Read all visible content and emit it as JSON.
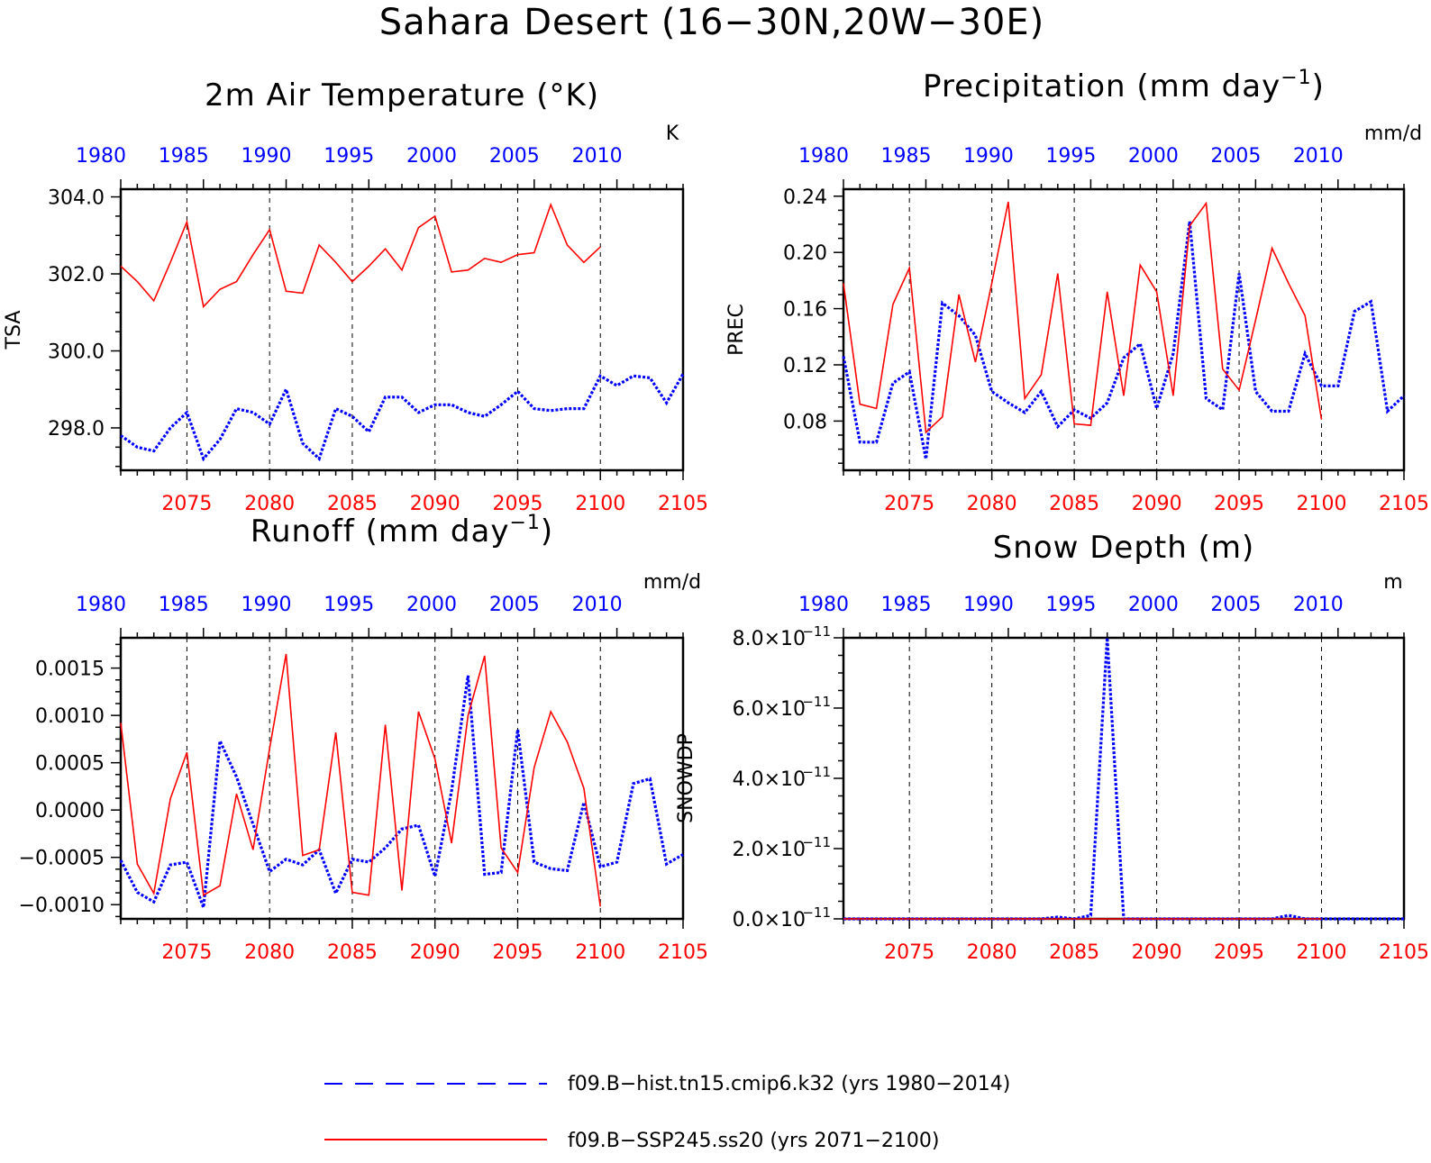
{
  "figure": {
    "title": "Sahara Desert (16−30N,20W−30E)"
  },
  "legend": {
    "placement": "bottom-center",
    "entries": [
      {
        "label": "f09.B−hist.tn15.cmip6.k32 (yrs 1980−2014)",
        "color": "#0000ff",
        "style": "dashed"
      },
      {
        "label": "f09.B−SSP245.ss20 (yrs 2071−2100)",
        "color": "#ff0000",
        "style": "solid"
      }
    ]
  },
  "colors": {
    "hist": "#0000ff",
    "ssp": "#ff0000",
    "grid": "#000000"
  },
  "chart_data": [
    {
      "id": "tsa",
      "type": "line",
      "title": "2m Air Temperature (°K)",
      "ylabel": "TSA",
      "units": "K",
      "ylim": [
        296.9,
        304.2
      ],
      "yticks": [
        298,
        300,
        302,
        304
      ],
      "ytick_labels": [
        "298.0",
        "300.0",
        "302.0",
        "304.0"
      ],
      "bottom_axis": {
        "lim": [
          2071,
          2105
        ],
        "ticks": [
          2075,
          2080,
          2085,
          2090,
          2095,
          2100,
          2105
        ],
        "color": "#ff0000"
      },
      "top_axis": {
        "lim": [
          1980,
          2014
        ],
        "ticks": [
          1980,
          1985,
          1990,
          1995,
          2000,
          2005,
          2010
        ],
        "color": "#0000ff"
      },
      "grid": "vertical dashed at bottom major ticks",
      "series": [
        {
          "key": "hist",
          "axis": "top",
          "style": "dotted",
          "x": [
            1980,
            1981,
            1982,
            1983,
            1984,
            1985,
            1986,
            1987,
            1988,
            1989,
            1990,
            1991,
            1992,
            1993,
            1994,
            1995,
            1996,
            1997,
            1998,
            1999,
            2000,
            2001,
            2002,
            2003,
            2004,
            2005,
            2006,
            2007,
            2008,
            2009,
            2010,
            2011,
            2012,
            2013,
            2014
          ],
          "values": [
            297.8,
            297.5,
            297.4,
            298.0,
            298.4,
            297.2,
            297.7,
            298.5,
            298.4,
            298.1,
            299.0,
            297.6,
            297.2,
            298.5,
            298.3,
            297.9,
            298.8,
            298.8,
            298.4,
            298.6,
            298.6,
            298.4,
            298.3,
            298.6,
            298.95,
            298.5,
            298.45,
            298.5,
            298.5,
            299.35,
            299.1,
            299.35,
            299.3,
            298.65,
            299.4
          ]
        },
        {
          "key": "ssp",
          "axis": "bottom",
          "style": "solid",
          "x": [
            2071,
            2072,
            2073,
            2074,
            2075,
            2076,
            2077,
            2078,
            2079,
            2080,
            2081,
            2082,
            2083,
            2084,
            2085,
            2086,
            2087,
            2088,
            2089,
            2090,
            2091,
            2092,
            2093,
            2094,
            2095,
            2096,
            2097,
            2098,
            2099,
            2100
          ],
          "values": [
            302.2,
            301.8,
            301.3,
            302.3,
            303.35,
            301.15,
            301.6,
            301.8,
            302.5,
            303.15,
            301.55,
            301.5,
            302.75,
            302.3,
            301.8,
            302.2,
            302.65,
            302.1,
            303.2,
            303.5,
            302.05,
            302.1,
            302.4,
            302.3,
            302.5,
            302.55,
            303.8,
            302.75,
            302.3,
            302.7
          ]
        }
      ]
    },
    {
      "id": "prec",
      "type": "line",
      "title": "Precipitation (mm day",
      "title_sup": "−1",
      "title_end": ")",
      "ylabel": "PREC",
      "units": "mm/d",
      "ylim": [
        0.045,
        0.245
      ],
      "yticks": [
        0.08,
        0.12,
        0.16,
        0.2,
        0.24
      ],
      "ytick_labels": [
        "0.08",
        "0.12",
        "0.16",
        "0.20",
        "0.24"
      ],
      "bottom_axis": {
        "lim": [
          2071,
          2105
        ],
        "ticks": [
          2075,
          2080,
          2085,
          2090,
          2095,
          2100,
          2105
        ],
        "color": "#ff0000"
      },
      "top_axis": {
        "lim": [
          1980,
          2014
        ],
        "ticks": [
          1980,
          1985,
          1990,
          1995,
          2000,
          2005,
          2010
        ],
        "color": "#0000ff"
      },
      "grid": "vertical dashed at bottom major ticks",
      "series": [
        {
          "key": "hist",
          "axis": "top",
          "style": "dotted",
          "x": [
            1980,
            1981,
            1982,
            1983,
            1984,
            1985,
            1986,
            1987,
            1988,
            1989,
            1990,
            1991,
            1992,
            1993,
            1994,
            1995,
            1996,
            1997,
            1998,
            1999,
            2000,
            2001,
            2002,
            2003,
            2004,
            2005,
            2006,
            2007,
            2008,
            2009,
            2010,
            2011,
            2012,
            2013,
            2014
          ],
          "values": [
            0.126,
            0.065,
            0.065,
            0.107,
            0.115,
            0.053,
            0.164,
            0.155,
            0.141,
            0.101,
            0.093,
            0.086,
            0.101,
            0.076,
            0.088,
            0.082,
            0.093,
            0.125,
            0.135,
            0.089,
            0.128,
            0.222,
            0.096,
            0.088,
            0.185,
            0.101,
            0.087,
            0.087,
            0.128,
            0.105,
            0.105,
            0.158,
            0.165,
            0.087,
            0.098
          ]
        },
        {
          "key": "ssp",
          "axis": "bottom",
          "style": "solid",
          "x": [
            2071,
            2072,
            2073,
            2074,
            2075,
            2076,
            2077,
            2078,
            2079,
            2080,
            2081,
            2082,
            2083,
            2084,
            2085,
            2086,
            2087,
            2088,
            2089,
            2090,
            2091,
            2092,
            2093,
            2094,
            2095,
            2096,
            2097,
            2098,
            2099,
            2100
          ],
          "values": [
            0.178,
            0.092,
            0.089,
            0.163,
            0.189,
            0.072,
            0.083,
            0.17,
            0.122,
            0.178,
            0.236,
            0.096,
            0.113,
            0.185,
            0.078,
            0.077,
            0.172,
            0.098,
            0.191,
            0.172,
            0.098,
            0.219,
            0.235,
            0.117,
            0.102,
            0.152,
            0.203,
            0.178,
            0.155,
            0.081
          ]
        }
      ]
    },
    {
      "id": "runoff",
      "type": "line",
      "title": "Runoff (mm day",
      "title_sup": "−1",
      "title_end": ")",
      "ylabel": "",
      "units": "mm/d",
      "ylim": [
        -0.00115,
        0.00182
      ],
      "yticks": [
        -0.001,
        -0.0005,
        0,
        0.0005,
        0.001,
        0.0015
      ],
      "ytick_labels": [
        "−0.0010",
        "−0.0005",
        "0.0000",
        "0.0005",
        "0.0010",
        "0.0015"
      ],
      "bottom_axis": {
        "lim": [
          2071,
          2105
        ],
        "ticks": [
          2075,
          2080,
          2085,
          2090,
          2095,
          2100,
          2105
        ],
        "color": "#ff0000"
      },
      "top_axis": {
        "lim": [
          1980,
          2014
        ],
        "ticks": [
          1980,
          1985,
          1990,
          1995,
          2000,
          2005,
          2010
        ],
        "color": "#0000ff"
      },
      "grid": "vertical dashed at bottom major ticks",
      "series": [
        {
          "key": "hist",
          "axis": "top",
          "style": "dotted",
          "x": [
            1980,
            1981,
            1982,
            1983,
            1984,
            1985,
            1986,
            1987,
            1988,
            1989,
            1990,
            1991,
            1992,
            1993,
            1994,
            1995,
            1996,
            1997,
            1998,
            1999,
            2000,
            2001,
            2002,
            2003,
            2004,
            2005,
            2006,
            2007,
            2008,
            2009,
            2010,
            2011,
            2012,
            2013,
            2014
          ],
          "values": [
            -0.00053,
            -0.00087,
            -0.00097,
            -0.00058,
            -0.00055,
            -0.00103,
            0.00073,
            0.00035,
            -0.00015,
            -0.00065,
            -0.00052,
            -0.00058,
            -0.00042,
            -0.00088,
            -0.00052,
            -0.00055,
            -0.0004,
            -0.0002,
            -0.00016,
            -0.0007,
            0.0002,
            0.00142,
            -0.00068,
            -0.00066,
            0.00085,
            -0.00055,
            -0.00062,
            -0.00064,
            8e-05,
            -0.0006,
            -0.00055,
            0.00028,
            0.00033,
            -0.00057,
            -0.00047
          ]
        },
        {
          "key": "ssp",
          "axis": "bottom",
          "style": "solid",
          "x": [
            2071,
            2072,
            2073,
            2074,
            2075,
            2076,
            2077,
            2078,
            2079,
            2080,
            2081,
            2082,
            2083,
            2084,
            2085,
            2086,
            2087,
            2088,
            2089,
            2090,
            2091,
            2092,
            2093,
            2094,
            2095,
            2096,
            2097,
            2098,
            2099,
            2100
          ],
          "values": [
            0.00092,
            -0.00057,
            -0.00088,
            0.00012,
            0.00061,
            -0.0009,
            -0.0008,
            0.00017,
            -0.00042,
            0.00065,
            0.00165,
            -0.00048,
            -0.00042,
            0.00082,
            -0.00087,
            -0.0009,
            0.0009,
            -0.00085,
            0.00104,
            0.00054,
            -0.00035,
            0.001,
            0.00163,
            -0.0004,
            -0.00066,
            0.00045,
            0.00104,
            0.00072,
            0.00023,
            -0.00102
          ]
        }
      ]
    },
    {
      "id": "snowdp",
      "type": "line",
      "title": "Snow Depth (m)",
      "ylabel": "SNOWDP",
      "units": "m",
      "ylim": [
        0,
        8e-11
      ],
      "yticks": [
        0,
        2e-11,
        4e-11,
        6e-11,
        8e-11
      ],
      "ytick_labels": [
        "0.0×10",
        "2.0×10",
        "4.0×10",
        "6.0×10",
        "8.0×10"
      ],
      "ytick_exponent": "−11",
      "bottom_axis": {
        "lim": [
          2071,
          2105
        ],
        "ticks": [
          2075,
          2080,
          2085,
          2090,
          2095,
          2100,
          2105
        ],
        "color": "#ff0000"
      },
      "top_axis": {
        "lim": [
          1980,
          2014
        ],
        "ticks": [
          1980,
          1985,
          1990,
          1995,
          2000,
          2005,
          2010
        ],
        "color": "#0000ff"
      },
      "grid": "vertical dashed at bottom major ticks",
      "series": [
        {
          "key": "hist",
          "axis": "top",
          "style": "dotted",
          "x": [
            1980,
            1981,
            1982,
            1983,
            1984,
            1985,
            1986,
            1987,
            1988,
            1989,
            1990,
            1991,
            1992,
            1993,
            1994,
            1995,
            1996,
            1997,
            1998,
            1999,
            2000,
            2001,
            2002,
            2003,
            2004,
            2005,
            2006,
            2007,
            2008,
            2009,
            2010,
            2011,
            2012,
            2013,
            2014
          ],
          "values": [
            0,
            0,
            0,
            0,
            0,
            0,
            0,
            0,
            0,
            0,
            0,
            0,
            0,
            5e-13,
            0,
            1e-12,
            8e-11,
            0,
            0,
            0,
            0,
            0,
            0,
            0,
            0,
            0,
            0,
            1e-12,
            0,
            0,
            0,
            0,
            0,
            0,
            0
          ]
        },
        {
          "key": "ssp",
          "axis": "bottom",
          "style": "solid",
          "x": [
            2071,
            2072,
            2073,
            2074,
            2075,
            2076,
            2077,
            2078,
            2079,
            2080,
            2081,
            2082,
            2083,
            2084,
            2085,
            2086,
            2087,
            2088,
            2089,
            2090,
            2091,
            2092,
            2093,
            2094,
            2095,
            2096,
            2097,
            2098,
            2099,
            2100
          ],
          "values": [
            0,
            0,
            0,
            0,
            0,
            0,
            0,
            0,
            0,
            0,
            0,
            0,
            0,
            0,
            0,
            0,
            0,
            0,
            0,
            0,
            0,
            0,
            0,
            0,
            0,
            0,
            0,
            0,
            0,
            0
          ]
        }
      ]
    }
  ]
}
